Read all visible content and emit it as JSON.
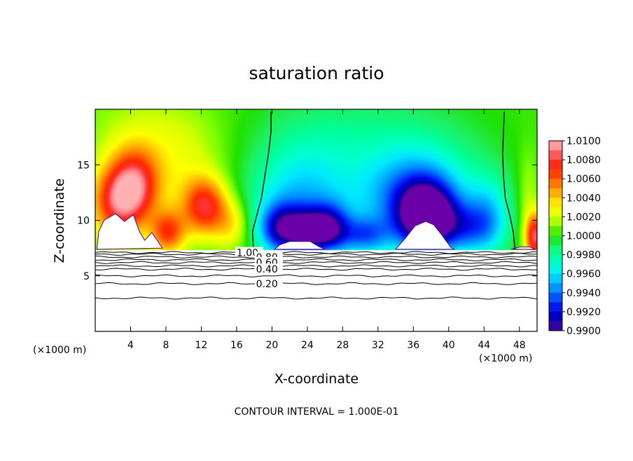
{
  "chart_data": {
    "type": "heatmap",
    "title": "saturation ratio",
    "xlabel": "X-coordinate",
    "ylabel": "Z-coordinate",
    "x_unit": "(×1000 m)",
    "x_unit_right": "(×1000 m)",
    "xlim": [
      0,
      50
    ],
    "ylim": [
      0,
      20
    ],
    "xticks": [
      4,
      8,
      12,
      16,
      20,
      24,
      28,
      32,
      36,
      40,
      44,
      48
    ],
    "yticks": [
      5,
      10,
      15
    ],
    "footer": "CONTOUR INTERVAL = 1.000E-01",
    "colorbar": {
      "ticks": [
        "1.0100",
        "1.0080",
        "1.0060",
        "1.0040",
        "1.0020",
        "1.0000",
        "0.9980",
        "0.9960",
        "0.9940",
        "0.9920",
        "0.9900"
      ],
      "stops": [
        {
          "value": 1.01,
          "color": "#ffb0b0"
        },
        {
          "value": 1.009,
          "color": "#ff7f86"
        },
        {
          "value": 1.008,
          "color": "#ff3030"
        },
        {
          "value": 1.007,
          "color": "#ff2a00"
        },
        {
          "value": 1.006,
          "color": "#ff5a00"
        },
        {
          "value": 1.005,
          "color": "#ff9200"
        },
        {
          "value": 1.004,
          "color": "#ffc600"
        },
        {
          "value": 1.003,
          "color": "#ffff00"
        },
        {
          "value": 1.002,
          "color": "#d8ff00"
        },
        {
          "value": 1.001,
          "color": "#7dff00"
        },
        {
          "value": 1.0,
          "color": "#20e000"
        },
        {
          "value": 0.999,
          "color": "#1ef064"
        },
        {
          "value": 0.998,
          "color": "#00ff9a"
        },
        {
          "value": 0.997,
          "color": "#00ffd2"
        },
        {
          "value": 0.996,
          "color": "#00e8ff"
        },
        {
          "value": 0.995,
          "color": "#00b0ff"
        },
        {
          "value": 0.994,
          "color": "#0078ff"
        },
        {
          "value": 0.993,
          "color": "#0032ff"
        },
        {
          "value": 0.992,
          "color": "#0000e0"
        },
        {
          "value": 0.991,
          "color": "#0000a0"
        },
        {
          "value": 0.99,
          "color": "#6a00a8"
        }
      ]
    },
    "contour_lines": [
      {
        "label": "1.00",
        "z": 7.1,
        "label_x": 16.0
      },
      {
        "label": "0.80",
        "z": 6.7,
        "label_x": 18.2
      },
      {
        "label": "0.60",
        "z": 6.2,
        "label_x": 18.2
      },
      {
        "label": "0.40",
        "z": 5.6,
        "label_x": 18.2
      },
      {
        "label": "0.20",
        "z": 4.3,
        "label_x": 18.2
      },
      {
        "label": "",
        "z": 6.95,
        "label_x": null
      },
      {
        "label": "",
        "z": 6.45,
        "label_x": null
      },
      {
        "label": "",
        "z": 5.9,
        "label_x": null
      },
      {
        "label": "",
        "z": 5.0,
        "label_x": null
      },
      {
        "label": "",
        "z": 3.0,
        "label_x": null
      }
    ],
    "boundaries": {
      "left_line": [
        [
          17.9,
          7.4
        ],
        [
          17.8,
          9
        ],
        [
          18.3,
          10.5
        ],
        [
          18.8,
          12
        ],
        [
          19.2,
          14
        ],
        [
          19.6,
          16
        ],
        [
          19.9,
          18
        ],
        [
          19.9,
          19.8
        ]
      ],
      "right_line": [
        [
          47.5,
          7.4
        ],
        [
          47.3,
          9
        ],
        [
          46.9,
          10.5
        ],
        [
          46.4,
          12
        ],
        [
          46.2,
          14
        ],
        [
          46.1,
          16
        ],
        [
          46.2,
          18
        ],
        [
          46.3,
          19.8
        ]
      ]
    },
    "subsaturated_clouds": [
      [
        [
          0.2,
          7.4
        ],
        [
          0.4,
          9.0
        ],
        [
          1.0,
          10.0
        ],
        [
          2.3,
          10.6
        ],
        [
          3.3,
          9.9
        ],
        [
          4.3,
          10.5
        ],
        [
          5.0,
          9.0
        ],
        [
          5.6,
          8.2
        ],
        [
          6.4,
          8.9
        ],
        [
          7.6,
          7.5
        ],
        [
          0.2,
          7.4
        ]
      ],
      [
        [
          20.3,
          7.4
        ],
        [
          20.9,
          7.8
        ],
        [
          22.0,
          8.1
        ],
        [
          24.3,
          8.1
        ],
        [
          25.4,
          7.6
        ],
        [
          26.0,
          7.4
        ],
        [
          20.3,
          7.4
        ]
      ],
      [
        [
          34.0,
          7.4
        ],
        [
          35.0,
          8.3
        ],
        [
          36.2,
          9.5
        ],
        [
          37.4,
          9.9
        ],
        [
          38.3,
          9.6
        ],
        [
          39.2,
          8.7
        ],
        [
          40.2,
          7.6
        ],
        [
          40.6,
          7.4
        ],
        [
          34.0,
          7.4
        ]
      ],
      [
        [
          47.1,
          7.4
        ],
        [
          48.1,
          7.6
        ],
        [
          49.2,
          7.6
        ],
        [
          49.8,
          7.4
        ],
        [
          47.1,
          7.4
        ]
      ]
    ],
    "cloud_base_z": 7.35,
    "field": {
      "background": 1.0003,
      "blobs": [
        {
          "x": 4.5,
          "z": 13.3,
          "sx": 2.0,
          "sz": 2.3,
          "v": 0.0064
        },
        {
          "x": 2.5,
          "z": 11.5,
          "sx": 2.2,
          "sz": 2.3,
          "v": 0.0066
        },
        {
          "x": 8.2,
          "z": 8.9,
          "sx": 1.4,
          "sz": 1.4,
          "v": 0.006
        },
        {
          "x": 12.4,
          "z": 11.2,
          "sx": 1.8,
          "sz": 1.8,
          "v": 0.007
        },
        {
          "x": 6.2,
          "z": 17.5,
          "sx": 5.0,
          "sz": 3.0,
          "v": 0.0016
        },
        {
          "x": 10.0,
          "z": 14.0,
          "sx": 3.0,
          "sz": 3.0,
          "v": 0.0014
        },
        {
          "x": 15.5,
          "z": 9.5,
          "sx": 1.5,
          "sz": 1.6,
          "v": 0.0028
        },
        {
          "x": 49.8,
          "z": 8.5,
          "sx": 0.8,
          "sz": 1.5,
          "v": 0.008
        },
        {
          "x": 49.0,
          "z": 12.0,
          "sx": 0.8,
          "sz": 3.0,
          "v": 0.0014
        },
        {
          "x": 21.0,
          "z": 9.2,
          "sx": 1.8,
          "sz": 1.6,
          "v": -0.0068
        },
        {
          "x": 24.0,
          "z": 9.0,
          "sx": 1.6,
          "sz": 1.4,
          "v": -0.0058
        },
        {
          "x": 26.5,
          "z": 9.2,
          "sx": 1.6,
          "sz": 1.5,
          "v": -0.0066
        },
        {
          "x": 30.5,
          "z": 8.6,
          "sx": 2.0,
          "sz": 1.2,
          "v": -0.0045
        },
        {
          "x": 23.0,
          "z": 12.0,
          "sx": 4.0,
          "sz": 3.5,
          "v": -0.004
        },
        {
          "x": 37.5,
          "z": 10.3,
          "sx": 2.3,
          "sz": 2.1,
          "v": -0.0098
        },
        {
          "x": 36.0,
          "z": 12.0,
          "sx": 4.0,
          "sz": 3.0,
          "v": -0.0045
        },
        {
          "x": 42.0,
          "z": 9.2,
          "sx": 2.5,
          "sz": 1.6,
          "v": -0.004
        },
        {
          "x": 44.5,
          "z": 10.5,
          "sx": 1.8,
          "sz": 2.5,
          "v": -0.0035
        },
        {
          "x": 31.0,
          "z": 14.0,
          "sx": 7.0,
          "sz": 5.0,
          "v": -0.0018
        },
        {
          "x": 39.0,
          "z": 14.0,
          "sx": 5.0,
          "sz": 4.0,
          "v": -0.001
        },
        {
          "x": 26.0,
          "z": 18.5,
          "sx": 6.0,
          "sz": 2.0,
          "v": -0.0006
        }
      ]
    }
  }
}
